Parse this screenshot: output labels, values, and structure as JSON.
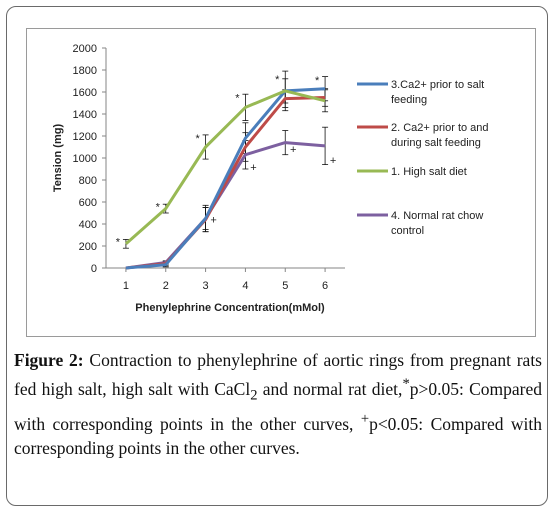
{
  "chart_data": {
    "type": "line",
    "xlabel": "Phenylephrine Concentration(mMol)",
    "ylabel": "Tension (mg)",
    "x": [
      1,
      2,
      3,
      4,
      5,
      6
    ],
    "ylim": [
      0,
      2000
    ],
    "yticks": [
      0,
      200,
      400,
      600,
      800,
      1000,
      1200,
      1400,
      1600,
      1800,
      2000
    ],
    "grid": false,
    "legend_position": "right",
    "series": [
      {
        "name": "3.Ca2+ prior to salt feeding",
        "color": "#4a7ebb",
        "values": [
          0,
          30,
          450,
          1180,
          1610,
          1630
        ],
        "errors": [
          0,
          20,
          120,
          140,
          110,
          110
        ]
      },
      {
        "name": "2. Ca2+ prior to and during salt  feeding",
        "color": "#be4b48",
        "values": [
          0,
          40,
          440,
          1100,
          1540,
          1550
        ],
        "errors": [
          0,
          20,
          110,
          130,
          80,
          80
        ]
      },
      {
        "name": "1. High salt diet",
        "color": "#98b954",
        "values": [
          220,
          540,
          1100,
          1460,
          1610,
          1520
        ],
        "errors": [
          40,
          40,
          110,
          120,
          180,
          100
        ]
      },
      {
        "name": "4. Normal rat chow control",
        "color": "#7d60a0",
        "values": [
          0,
          50,
          450,
          1030,
          1140,
          1110
        ],
        "errors": [
          0,
          15,
          100,
          130,
          110,
          170
        ]
      }
    ],
    "annotations": [
      {
        "text": "*",
        "x": 1,
        "y": 240
      },
      {
        "text": "*",
        "x": 2,
        "y": 560
      },
      {
        "text": "*",
        "x": 3,
        "y": 1180
      },
      {
        "text": "+",
        "x": 3,
        "y": 440
      },
      {
        "text": "*",
        "x": 4,
        "y": 1550
      },
      {
        "text": "+",
        "x": 4,
        "y": 920
      },
      {
        "text": "*",
        "x": 5,
        "y": 1720
      },
      {
        "text": "+",
        "x": 5,
        "y": 1080
      },
      {
        "text": "*",
        "x": 6,
        "y": 1710
      },
      {
        "text": "+",
        "x": 6,
        "y": 980
      }
    ]
  },
  "caption": {
    "label": "Figure 2:",
    "text1": "Contraction to phenylephrine of aortic rings from pregnant rats fed high salt, high salt with CaCl",
    "sub": "2",
    "text2": " and normal rat diet,",
    "sup1": "*",
    "text3": "p>0.05: Compared with corresponding points in the other curves, ",
    "sup2": "+",
    "text4": "p<0.05: Compared with corresponding points in the other curves."
  }
}
